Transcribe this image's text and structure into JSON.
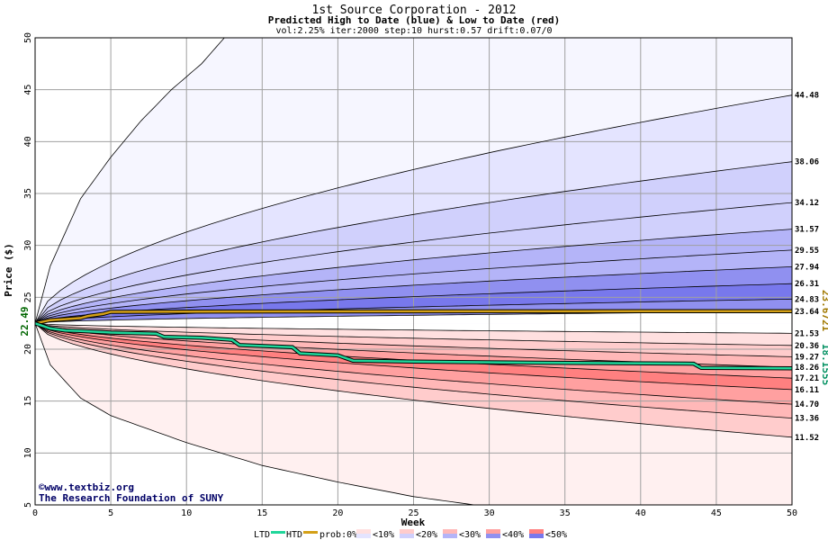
{
  "chart_data": {
    "type": "area",
    "title": "1st Source Corporation - 2012",
    "subtitle": "Predicted High to Date (blue) &  Low to Date (red)",
    "params": "vol:2.25% iter:2000 step:10 hurst:0.57 drift:0.07/0",
    "xlabel": "Week",
    "ylabel": "Price ($)",
    "xlim": [
      0,
      50
    ],
    "ylim": [
      5,
      50
    ],
    "x_ticks": [
      0,
      5,
      10,
      15,
      20,
      25,
      30,
      35,
      40,
      45,
      50
    ],
    "y_ticks": [
      5,
      10,
      15,
      20,
      25,
      30,
      35,
      40,
      45,
      50
    ],
    "grid": true,
    "start_price": 22.49,
    "start_label": "22.49",
    "upper_percentile_end_values": [
      44.48,
      38.06,
      34.12,
      31.57,
      29.55,
      27.94,
      26.31,
      24.83,
      23.64
    ],
    "lower_percentile_end_values": [
      21.53,
      20.36,
      19.27,
      18.26,
      17.21,
      16.11,
      14.7,
      13.36,
      11.52
    ],
    "right_labels": [
      "44.48",
      "38.06",
      "34.12",
      "31.57",
      "29.55",
      "27.94",
      "26.31",
      "24.83",
      "23.64",
      "21.53",
      "20.36",
      "19.27",
      "18.26",
      "17.21",
      "16.11",
      "14.70",
      "13.36",
      "11.52"
    ],
    "htd_series": {
      "name": "HTD",
      "color": "#d4a017",
      "end_label": "23.6721",
      "points": [
        [
          0,
          22.49
        ],
        [
          1,
          22.8
        ],
        [
          2,
          22.9
        ],
        [
          3,
          23.0
        ],
        [
          3.5,
          23.2
        ],
        [
          4.5,
          23.4
        ],
        [
          5,
          23.6
        ],
        [
          10,
          23.62
        ],
        [
          20,
          23.64
        ],
        [
          30,
          23.65
        ],
        [
          40,
          23.66
        ],
        [
          50,
          23.67
        ]
      ]
    },
    "ltd_series": {
      "name": "LTD",
      "color": "#1fd69a",
      "end_label": "18.1555",
      "points": [
        [
          0,
          22.49
        ],
        [
          1,
          22.0
        ],
        [
          2,
          21.8
        ],
        [
          3,
          21.75
        ],
        [
          5,
          21.6
        ],
        [
          8,
          21.5
        ],
        [
          8.5,
          21.2
        ],
        [
          11,
          21.1
        ],
        [
          13,
          20.9
        ],
        [
          13.5,
          20.4
        ],
        [
          17,
          20.2
        ],
        [
          17.5,
          19.6
        ],
        [
          20,
          19.4
        ],
        [
          21,
          18.9
        ],
        [
          25,
          18.8
        ],
        [
          33,
          18.7
        ],
        [
          43.5,
          18.6
        ],
        [
          44,
          18.2
        ],
        [
          50,
          18.16
        ]
      ]
    },
    "extreme_envelope": {
      "upper": [
        [
          0,
          22.49
        ],
        [
          1,
          28
        ],
        [
          3,
          34.5
        ],
        [
          5,
          38.5
        ],
        [
          7,
          42
        ],
        [
          9,
          45
        ],
        [
          11,
          47.5
        ],
        [
          12.5,
          50
        ]
      ],
      "lower": [
        [
          0,
          22.49
        ],
        [
          1,
          18.5
        ],
        [
          3,
          15.3
        ],
        [
          5,
          13.6
        ],
        [
          10,
          11
        ],
        [
          15,
          8.8
        ],
        [
          20,
          7.2
        ],
        [
          25,
          5.8
        ],
        [
          29,
          5.0
        ]
      ]
    },
    "watermark": [
      "©www.textbiz.org",
      "The Research Foundation of SUNY"
    ],
    "legend": {
      "ltd": "LTD",
      "htd": "HTD",
      "prob": "prob:0%",
      "bands": [
        "<10%",
        "<20%",
        "<30%",
        "<40%",
        "<50%"
      ],
      "blue_colors": [
        "#f6f6ff",
        "#e4e4ff",
        "#d0d0fc",
        "#b4b4f8",
        "#9090f0",
        "#7878ec"
      ],
      "red_colors": [
        "#fff0f0",
        "#ffe0e0",
        "#ffcccc",
        "#ffb8b8",
        "#ffa0a0",
        "#ff8080"
      ]
    }
  }
}
